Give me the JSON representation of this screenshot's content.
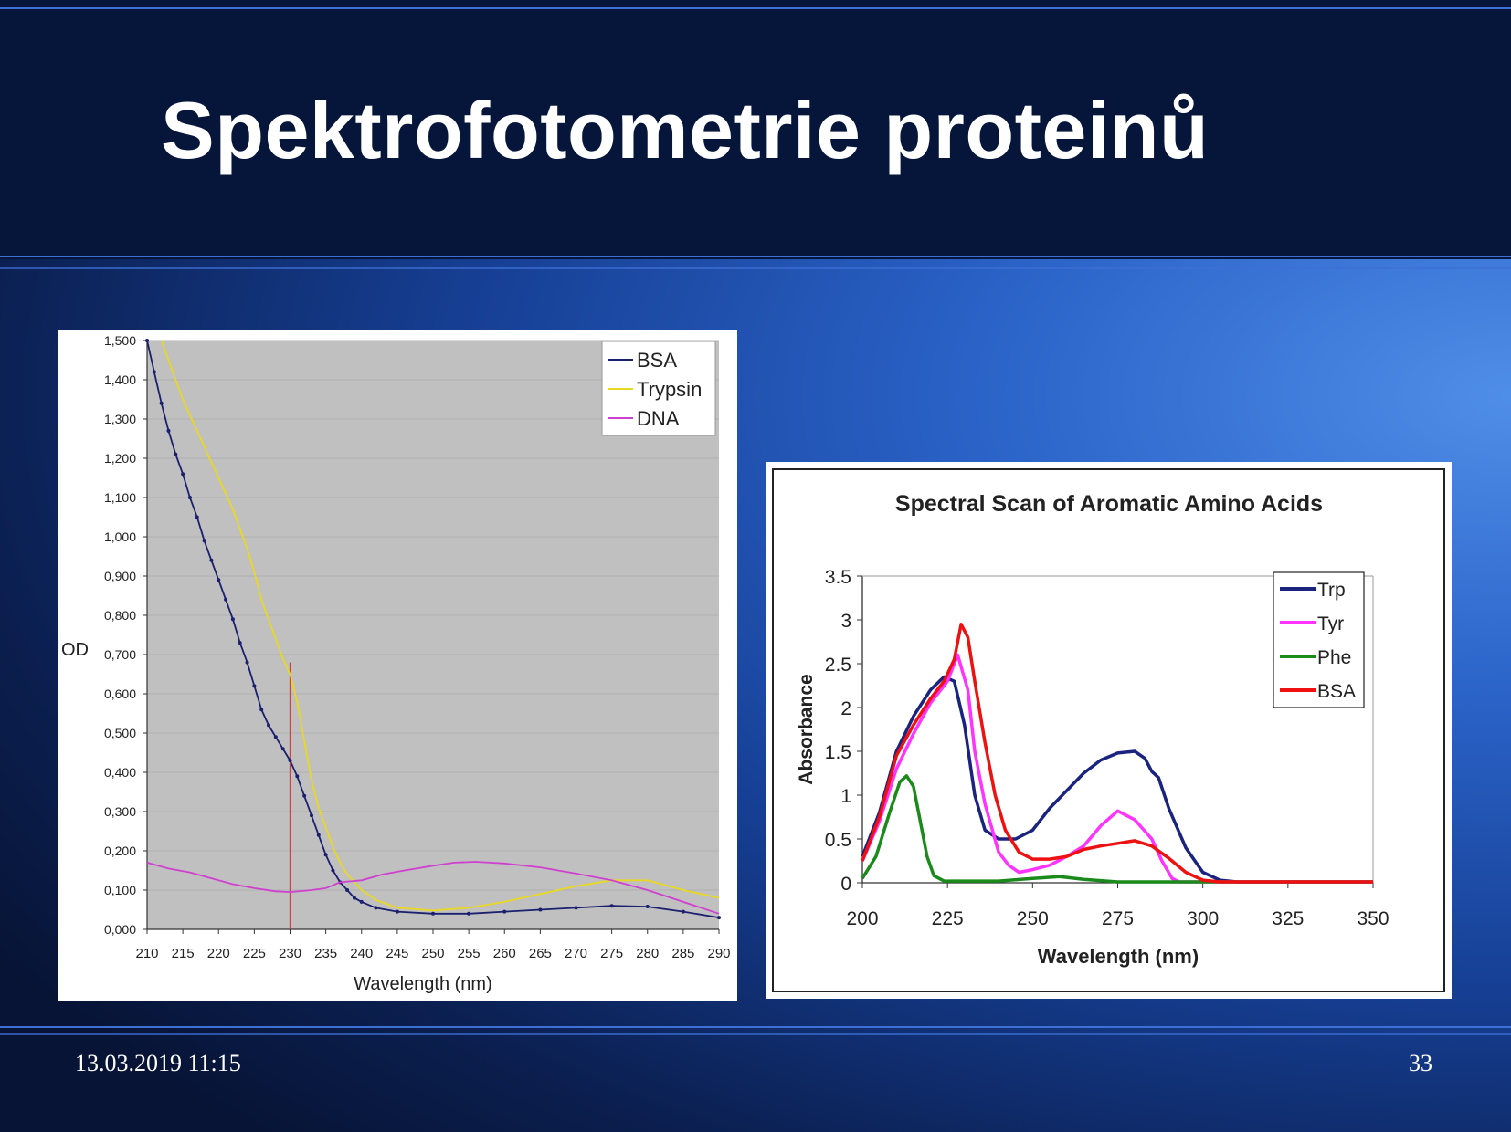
{
  "slide": {
    "title": "Spektrofotometrie proteinů",
    "date": "13.03.2019 11:15",
    "page_number": "33"
  },
  "chart_data": [
    {
      "type": "line",
      "title": "",
      "xlabel": "Wavelength (nm)",
      "ylabel": "OD",
      "xlim": [
        210,
        290
      ],
      "ylim": [
        0,
        1.5
      ],
      "x_ticks": [
        "210",
        "215",
        "220",
        "225",
        "230",
        "235",
        "240",
        "245",
        "250",
        "255",
        "260",
        "265",
        "270",
        "275",
        "280",
        "285",
        "290"
      ],
      "y_ticks": [
        "0,000",
        "0,100",
        "0,200",
        "0,300",
        "0,400",
        "0,500",
        "0,600",
        "0,700",
        "0,800",
        "0,900",
        "1,000",
        "1,100",
        "1,200",
        "1,300",
        "1,400",
        "1,500"
      ],
      "plot_background": "#c0c0c0",
      "grid": true,
      "legend_position": "top-right",
      "marker_line_x": 230,
      "marker_line_color": "#d04040",
      "series": [
        {
          "name": "BSA",
          "color": "#1a1f6e",
          "points": [
            [
              210,
              1.5
            ],
            [
              211,
              1.42
            ],
            [
              212,
              1.34
            ],
            [
              213,
              1.27
            ],
            [
              214,
              1.21
            ],
            [
              215,
              1.16
            ],
            [
              216,
              1.1
            ],
            [
              217,
              1.05
            ],
            [
              218,
              0.99
            ],
            [
              219,
              0.94
            ],
            [
              220,
              0.89
            ],
            [
              221,
              0.84
            ],
            [
              222,
              0.79
            ],
            [
              223,
              0.73
            ],
            [
              224,
              0.68
            ],
            [
              225,
              0.62
            ],
            [
              226,
              0.56
            ],
            [
              227,
              0.52
            ],
            [
              228,
              0.49
            ],
            [
              229,
              0.46
            ],
            [
              230,
              0.43
            ],
            [
              231,
              0.39
            ],
            [
              232,
              0.34
            ],
            [
              233,
              0.29
            ],
            [
              234,
              0.24
            ],
            [
              235,
              0.19
            ],
            [
              236,
              0.15
            ],
            [
              237,
              0.12
            ],
            [
              238,
              0.1
            ],
            [
              239,
              0.08
            ],
            [
              240,
              0.07
            ],
            [
              242,
              0.055
            ],
            [
              245,
              0.045
            ],
            [
              250,
              0.04
            ],
            [
              255,
              0.04
            ],
            [
              260,
              0.045
            ],
            [
              265,
              0.05
            ],
            [
              270,
              0.055
            ],
            [
              275,
              0.06
            ],
            [
              280,
              0.058
            ],
            [
              285,
              0.045
            ],
            [
              290,
              0.03
            ]
          ]
        },
        {
          "name": "Trypsin",
          "color": "#e8d820",
          "points": [
            [
              212,
              1.5
            ],
            [
              213,
              1.45
            ],
            [
              214,
              1.4
            ],
            [
              215,
              1.35
            ],
            [
              216,
              1.31
            ],
            [
              217,
              1.27
            ],
            [
              218,
              1.23
            ],
            [
              219,
              1.19
            ],
            [
              220,
              1.15
            ],
            [
              221,
              1.11
            ],
            [
              222,
              1.07
            ],
            [
              223,
              1.02
            ],
            [
              224,
              0.97
            ],
            [
              225,
              0.91
            ],
            [
              226,
              0.84
            ],
            [
              227,
              0.79
            ],
            [
              228,
              0.74
            ],
            [
              229,
              0.69
            ],
            [
              230,
              0.65
            ],
            [
              231,
              0.58
            ],
            [
              232,
              0.48
            ],
            [
              233,
              0.38
            ],
            [
              234,
              0.31
            ],
            [
              235,
              0.26
            ],
            [
              236,
              0.21
            ],
            [
              237,
              0.17
            ],
            [
              238,
              0.14
            ],
            [
              239,
              0.12
            ],
            [
              240,
              0.1
            ],
            [
              242,
              0.075
            ],
            [
              245,
              0.055
            ],
            [
              250,
              0.048
            ],
            [
              255,
              0.055
            ],
            [
              260,
              0.07
            ],
            [
              265,
              0.09
            ],
            [
              270,
              0.11
            ],
            [
              275,
              0.125
            ],
            [
              280,
              0.125
            ],
            [
              285,
              0.1
            ],
            [
              290,
              0.08
            ]
          ]
        },
        {
          "name": "DNA",
          "color": "#d040d0",
          "points": [
            [
              210,
              0.17
            ],
            [
              213,
              0.155
            ],
            [
              216,
              0.145
            ],
            [
              219,
              0.13
            ],
            [
              222,
              0.115
            ],
            [
              225,
              0.105
            ],
            [
              228,
              0.097
            ],
            [
              230,
              0.095
            ],
            [
              233,
              0.1
            ],
            [
              235,
              0.105
            ],
            [
              237,
              0.12
            ],
            [
              240,
              0.125
            ],
            [
              243,
              0.14
            ],
            [
              246,
              0.15
            ],
            [
              250,
              0.162
            ],
            [
              253,
              0.17
            ],
            [
              256,
              0.172
            ],
            [
              260,
              0.168
            ],
            [
              265,
              0.158
            ],
            [
              270,
              0.142
            ],
            [
              275,
              0.125
            ],
            [
              280,
              0.1
            ],
            [
              285,
              0.07
            ],
            [
              290,
              0.04
            ]
          ]
        }
      ]
    },
    {
      "type": "line",
      "title": "Spectral Scan of Aromatic Amino Acids",
      "xlabel": "Wavelength (nm)",
      "ylabel": "Absorbance",
      "xlim": [
        200,
        350
      ],
      "ylim": [
        0,
        3.5
      ],
      "x_ticks": [
        "200",
        "225",
        "250",
        "275",
        "300",
        "325",
        "350"
      ],
      "y_ticks": [
        "0",
        "0.5",
        "1",
        "1.5",
        "2",
        "2.5",
        "3",
        "3.5"
      ],
      "grid": false,
      "legend_position": "top-right",
      "series": [
        {
          "name": "Trp",
          "color": "#1a237e",
          "points": [
            [
              200,
              0.3
            ],
            [
              205,
              0.8
            ],
            [
              210,
              1.5
            ],
            [
              215,
              1.9
            ],
            [
              220,
              2.2
            ],
            [
              224,
              2.35
            ],
            [
              227,
              2.3
            ],
            [
              230,
              1.8
            ],
            [
              233,
              1.0
            ],
            [
              236,
              0.6
            ],
            [
              240,
              0.5
            ],
            [
              245,
              0.5
            ],
            [
              250,
              0.6
            ],
            [
              255,
              0.85
            ],
            [
              260,
              1.05
            ],
            [
              265,
              1.25
            ],
            [
              270,
              1.4
            ],
            [
              275,
              1.48
            ],
            [
              280,
              1.5
            ],
            [
              283,
              1.42
            ],
            [
              285,
              1.27
            ],
            [
              287,
              1.2
            ],
            [
              290,
              0.85
            ],
            [
              295,
              0.4
            ],
            [
              300,
              0.12
            ],
            [
              305,
              0.03
            ],
            [
              310,
              0.01
            ],
            [
              350,
              0.01
            ]
          ]
        },
        {
          "name": "Tyr",
          "color": "#ff33ff",
          "points": [
            [
              200,
              0.25
            ],
            [
              205,
              0.7
            ],
            [
              210,
              1.3
            ],
            [
              215,
              1.7
            ],
            [
              220,
              2.05
            ],
            [
              225,
              2.3
            ],
            [
              228,
              2.6
            ],
            [
              231,
              2.2
            ],
            [
              233,
              1.5
            ],
            [
              236,
              0.9
            ],
            [
              240,
              0.35
            ],
            [
              243,
              0.2
            ],
            [
              246,
              0.12
            ],
            [
              250,
              0.15
            ],
            [
              255,
              0.2
            ],
            [
              260,
              0.3
            ],
            [
              265,
              0.42
            ],
            [
              270,
              0.65
            ],
            [
              275,
              0.82
            ],
            [
              280,
              0.72
            ],
            [
              285,
              0.5
            ],
            [
              288,
              0.25
            ],
            [
              291,
              0.05
            ],
            [
              293,
              0.01
            ],
            [
              350,
              0.01
            ]
          ]
        },
        {
          "name": "Phe",
          "color": "#1a8a1a",
          "points": [
            [
              200,
              0.05
            ],
            [
              204,
              0.3
            ],
            [
              208,
              0.8
            ],
            [
              211,
              1.15
            ],
            [
              213,
              1.22
            ],
            [
              215,
              1.1
            ],
            [
              217,
              0.7
            ],
            [
              219,
              0.3
            ],
            [
              221,
              0.08
            ],
            [
              224,
              0.02
            ],
            [
              240,
              0.02
            ],
            [
              250,
              0.05
            ],
            [
              258,
              0.07
            ],
            [
              265,
              0.04
            ],
            [
              275,
              0.01
            ],
            [
              350,
              0.01
            ]
          ]
        },
        {
          "name": "BSA",
          "color": "#ee1111",
          "points": [
            [
              200,
              0.25
            ],
            [
              205,
              0.75
            ],
            [
              210,
              1.45
            ],
            [
              215,
              1.8
            ],
            [
              220,
              2.1
            ],
            [
              224,
              2.3
            ],
            [
              227,
              2.55
            ],
            [
              229,
              2.95
            ],
            [
              231,
              2.8
            ],
            [
              233,
              2.3
            ],
            [
              236,
              1.6
            ],
            [
              239,
              1.0
            ],
            [
              242,
              0.6
            ],
            [
              246,
              0.35
            ],
            [
              250,
              0.27
            ],
            [
              255,
              0.27
            ],
            [
              260,
              0.3
            ],
            [
              265,
              0.38
            ],
            [
              270,
              0.42
            ],
            [
              275,
              0.45
            ],
            [
              280,
              0.48
            ],
            [
              285,
              0.42
            ],
            [
              290,
              0.28
            ],
            [
              295,
              0.12
            ],
            [
              300,
              0.03
            ],
            [
              305,
              0.01
            ],
            [
              350,
              0.01
            ]
          ]
        }
      ]
    }
  ]
}
